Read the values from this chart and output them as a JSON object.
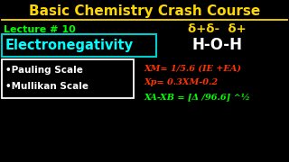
{
  "bg_color": "#000000",
  "title": "Basic Chemistry Crash Course",
  "title_color": "#FFD700",
  "lecture": "Lecture # 10",
  "lecture_color": "#00FF00",
  "main_topic": "Electronegativity",
  "main_topic_color": "#00FFFF",
  "main_topic_box_color": "#00CCCC",
  "bullet1": "•Pauling Scale",
  "bullet2": "•Mullikan Scale",
  "bullets_color": "#FFFFFF",
  "bullets_box_color": "#FFFFFF",
  "delta_line": "δ+δ-  δ+",
  "delta_color": "#FFD700",
  "molecule": "H-O-H",
  "molecule_color": "#FFFFFF",
  "formula1": "XM= 1/5.6 (IE +EA)",
  "formula2": "Xp= 0.3XM-0.2",
  "formula3": "XA-XB = [Δ /96.6] ^½",
  "formulas_color": "#FF3300",
  "formula3_color": "#00FF00"
}
